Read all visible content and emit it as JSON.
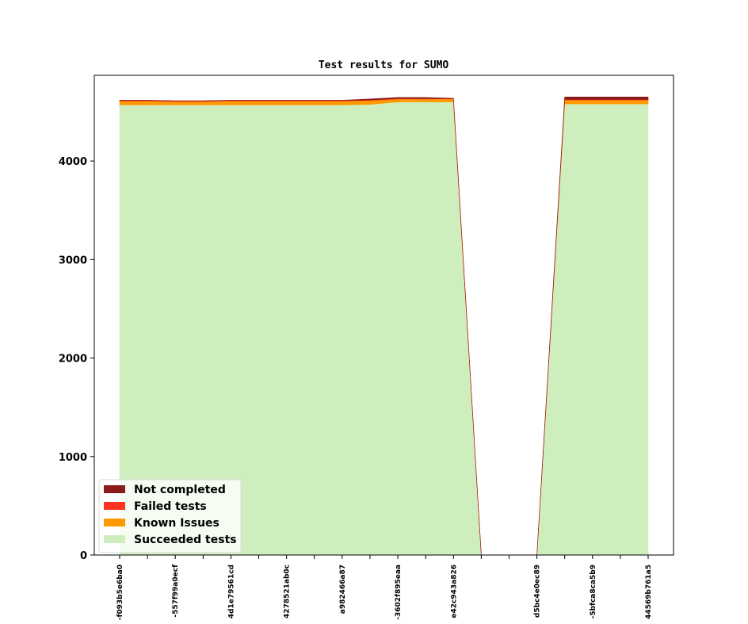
{
  "chart_data": {
    "type": "area",
    "title": "Test results for SUMO",
    "xlabel": "",
    "ylabel": "",
    "ylim": [
      0,
      4870
    ],
    "yticks": [
      0,
      1000,
      2000,
      3000,
      4000
    ],
    "ytick_labels": [
      "0",
      "1000",
      "2000",
      "3000",
      "4000"
    ],
    "stacked": true,
    "categories": [
      "-f093b5e6ba0",
      "",
      "-557f99a0ecf",
      "",
      "4d1e79561cd",
      "",
      "4278521ab0c",
      "",
      "a982466a87",
      "",
      "-3602f895eaa",
      "",
      "e42c943a826",
      "",
      "",
      "d5bc4e0ec89",
      "",
      "-5bfca8ca5b9",
      "",
      "44569b761a5"
    ],
    "tick_labels": [
      "-f093b5e6ba0",
      "-557f99a0ecf",
      "4d1e79561cd",
      "4278521ab0c",
      "a982466a87",
      "-3602f895eaa",
      "e42c943a826",
      "d5bc4e0ec89",
      "-5bfca8ca5b9",
      "44569b761a5"
    ],
    "series": [
      {
        "name": "Succeeded tests",
        "color": "#ceeebe",
        "values": [
          4570,
          4570,
          4570,
          4570,
          4570,
          4570,
          4570,
          4570,
          4570,
          4575,
          4600,
          4600,
          4600,
          0,
          0,
          0,
          4580,
          4580,
          4580,
          4580
        ]
      },
      {
        "name": "Known Issues",
        "color": "#ff9900",
        "values": [
          40,
          40,
          35,
          35,
          40,
          40,
          40,
          40,
          40,
          40,
          30,
          30,
          30,
          0,
          0,
          0,
          40,
          40,
          40,
          40
        ]
      },
      {
        "name": "Failed tests",
        "color": "#ff3322",
        "values": [
          5,
          5,
          5,
          5,
          5,
          5,
          5,
          5,
          5,
          5,
          5,
          5,
          5,
          0,
          0,
          0,
          5,
          5,
          5,
          5
        ]
      },
      {
        "name": "Not completed",
        "color": "#8b1a1a",
        "values": [
          2,
          2,
          2,
          2,
          2,
          2,
          2,
          2,
          2,
          10,
          10,
          10,
          2,
          0,
          0,
          0,
          25,
          25,
          25,
          25
        ]
      }
    ],
    "legend_position": "bottom-left",
    "grid": false
  }
}
